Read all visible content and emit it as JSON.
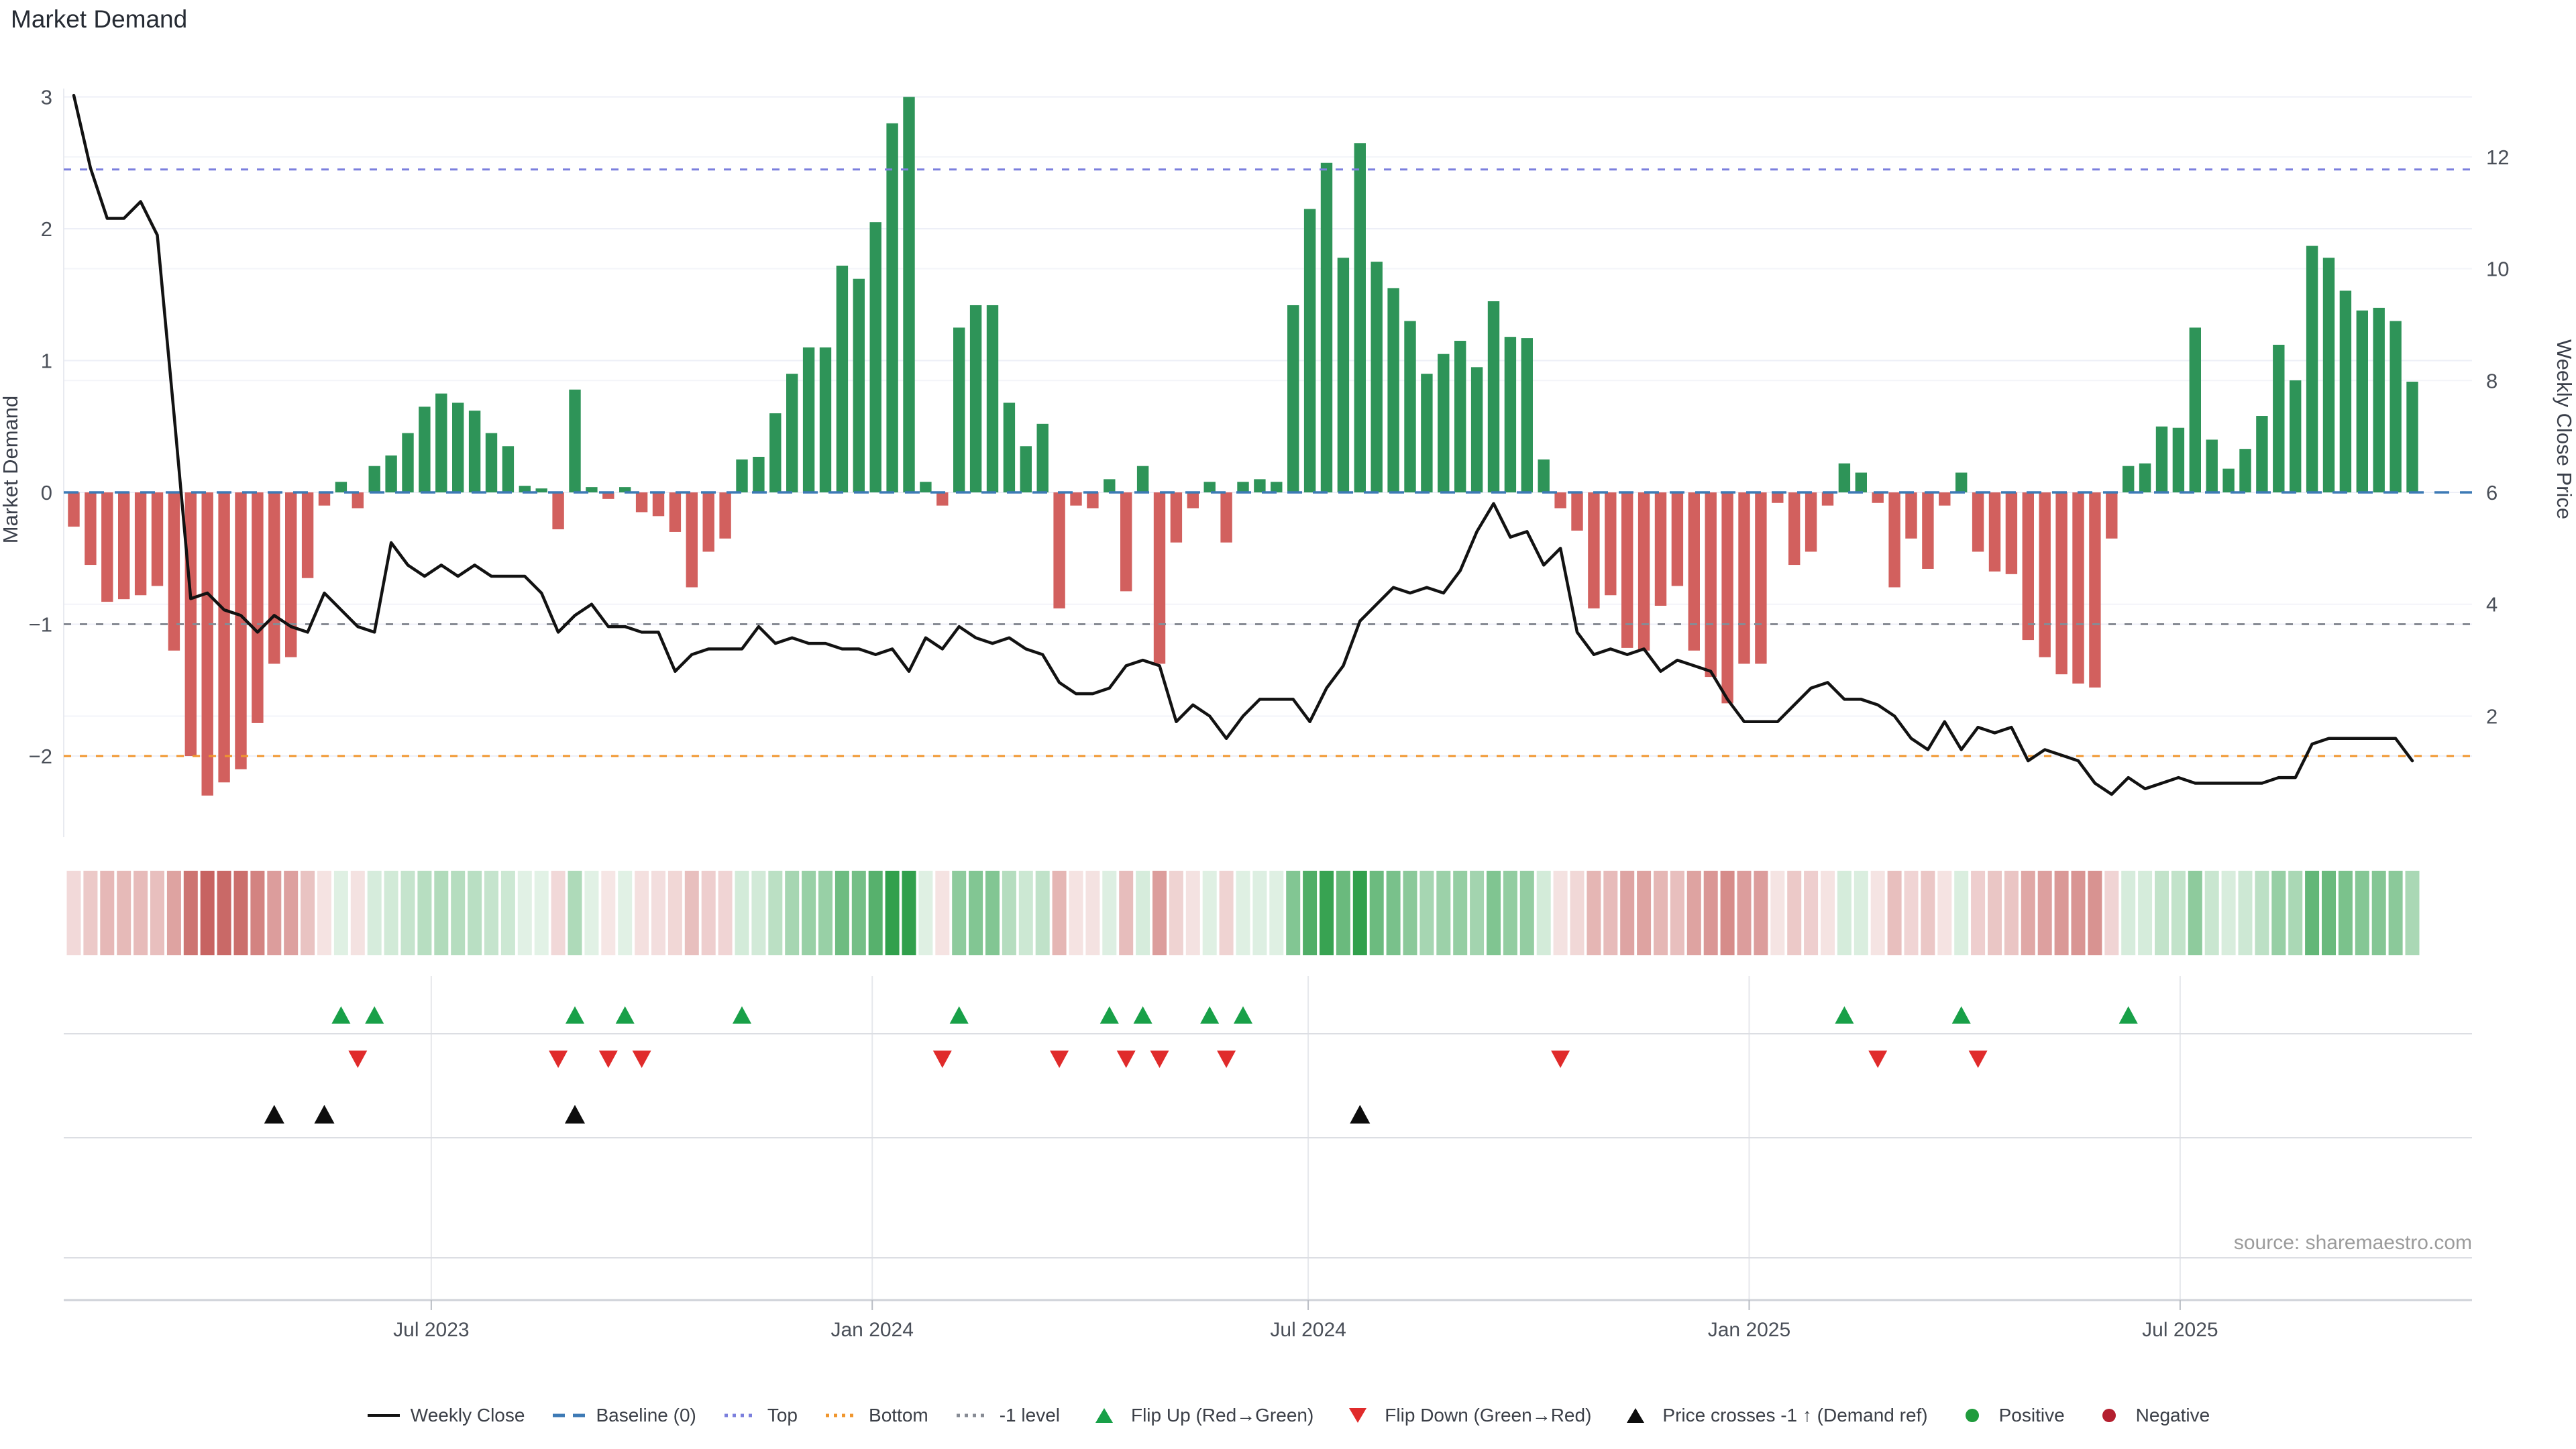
{
  "title": "Market Demand",
  "source": {
    "text": "source: sharemaestro.com"
  },
  "axes": {
    "left_label": "Market Demand",
    "right_label": "Weekly Close Price",
    "left_ticks": [
      3,
      2,
      1,
      0,
      -1,
      -2
    ],
    "right_ticks": [
      12,
      10,
      8,
      6,
      4,
      2
    ],
    "x_ticks": [
      {
        "label": "Jul 2023",
        "week": 21.4
      },
      {
        "label": "Jan 2024",
        "week": 47.8
      },
      {
        "label": "Jul 2024",
        "week": 73.9
      },
      {
        "label": "Jan 2025",
        "week": 100.3
      },
      {
        "label": "Jul 2025",
        "week": 126.1
      }
    ]
  },
  "ref_lines": {
    "baseline": {
      "label": "Baseline (0)",
      "value": 0,
      "color": "#3d7ab5"
    },
    "top": {
      "label": "Top",
      "value": 2.45,
      "color": "#7b7fdd"
    },
    "bottom": {
      "label": "Bottom",
      "value": -2.0,
      "color": "#f0962e"
    },
    "minus1": {
      "label": "-1 level",
      "value": -1.0,
      "color": "#878b94"
    }
  },
  "colors": {
    "bar_positive": "#2e9458",
    "bar_negative": "#d2605e",
    "price_line": "#121212",
    "heat_green": [
      49,
      160,
      76
    ],
    "heat_red": [
      193,
      82,
      79
    ],
    "flip_up": "#18a048",
    "flip_down": "#e02b2b",
    "price_cross": "#0d0d0d",
    "grid_left": "#edeff7",
    "grid_right": "#f3f4f9",
    "band_grid": "#e6e8ec",
    "separator": "#dcdee3",
    "axis_line": "#cfd2d8",
    "tick_text": "#4a4f58",
    "source_text": "#9b9b9b"
  },
  "chart_data": {
    "type": "bar+line",
    "x_unit": "weeks",
    "title": "Market Demand",
    "ylabel_left": "Market Demand",
    "ylabel_right": "Weekly Close Price",
    "ylim_left": [
      -2.6,
      3.05
    ],
    "ylim_right": [
      0,
      13.2
    ],
    "grid": true,
    "legend_position": "bottom-center",
    "series": [
      {
        "name": "Market Demand (weekly bars)",
        "axis": "left",
        "values": [
          -0.26,
          -0.55,
          -0.83,
          -0.81,
          -0.78,
          -0.71,
          -1.2,
          -2.0,
          -2.3,
          -2.2,
          -2.1,
          -1.75,
          -1.3,
          -1.25,
          -0.65,
          -0.1,
          0.08,
          -0.12,
          0.2,
          0.28,
          0.45,
          0.65,
          0.75,
          0.68,
          0.62,
          0.45,
          0.35,
          0.05,
          0.03,
          -0.28,
          0.78,
          0.04,
          -0.05,
          0.04,
          -0.15,
          -0.18,
          -0.3,
          -0.72,
          -0.45,
          -0.35,
          0.25,
          0.27,
          0.6,
          0.9,
          1.1,
          1.1,
          1.72,
          1.62,
          2.05,
          2.8,
          3.0,
          0.08,
          -0.1,
          1.25,
          1.42,
          1.42,
          0.68,
          0.35,
          0.52,
          -0.88,
          -0.1,
          -0.12,
          0.1,
          -0.75,
          0.2,
          -1.3,
          -0.38,
          -0.12,
          0.08,
          -0.38,
          0.08,
          0.1,
          0.08,
          1.42,
          2.15,
          2.5,
          1.78,
          2.65,
          1.75,
          1.55,
          1.3,
          0.9,
          1.05,
          1.15,
          0.95,
          1.45,
          1.18,
          1.17,
          0.25,
          -0.12,
          -0.29,
          -0.88,
          -0.78,
          -1.18,
          -1.2,
          -0.86,
          -0.71,
          -1.2,
          -1.4,
          -1.6,
          -1.3,
          -1.3,
          -0.08,
          -0.55,
          -0.45,
          -0.1,
          0.22,
          0.15,
          -0.08,
          -0.72,
          -0.35,
          -0.58,
          -0.1,
          0.15,
          -0.45,
          -0.6,
          -0.62,
          -1.12,
          -1.25,
          -1.38,
          -1.45,
          -1.48,
          -0.35,
          0.2,
          0.22,
          0.5,
          0.49,
          1.25,
          0.4,
          0.18,
          0.33,
          0.58,
          1.12,
          0.85,
          1.87,
          1.78,
          1.53,
          1.38,
          1.4,
          1.3,
          0.84
        ]
      },
      {
        "name": "Weekly Close",
        "axis": "right",
        "values": [
          13.1,
          11.8,
          10.9,
          10.9,
          11.2,
          10.6,
          7.4,
          4.1,
          4.2,
          3.9,
          3.8,
          3.5,
          3.8,
          3.6,
          3.5,
          4.2,
          3.9,
          3.6,
          3.5,
          5.1,
          4.7,
          4.5,
          4.7,
          4.5,
          4.7,
          4.5,
          4.5,
          4.5,
          4.2,
          3.5,
          3.8,
          4.0,
          3.6,
          3.6,
          3.5,
          3.5,
          2.8,
          3.1,
          3.2,
          3.2,
          3.2,
          3.6,
          3.3,
          3.4,
          3.3,
          3.3,
          3.2,
          3.2,
          3.1,
          3.2,
          2.8,
          3.4,
          3.2,
          3.6,
          3.4,
          3.3,
          3.4,
          3.2,
          3.1,
          2.6,
          2.4,
          2.4,
          2.5,
          2.9,
          3.0,
          2.9,
          1.9,
          2.2,
          2.0,
          1.6,
          2.0,
          2.3,
          2.3,
          2.3,
          1.9,
          2.5,
          2.9,
          3.7,
          4.0,
          4.3,
          4.2,
          4.3,
          4.2,
          4.6,
          5.3,
          5.8,
          5.2,
          5.3,
          4.7,
          5.0,
          3.5,
          3.1,
          3.2,
          3.1,
          3.2,
          2.8,
          3.0,
          2.9,
          2.8,
          2.3,
          1.9,
          1.9,
          1.9,
          2.2,
          2.5,
          2.6,
          2.3,
          2.3,
          2.2,
          2.0,
          1.6,
          1.4,
          1.9,
          1.4,
          1.8,
          1.7,
          1.8,
          1.2,
          1.4,
          1.3,
          1.2,
          0.8,
          0.6,
          0.9,
          0.7,
          0.8,
          0.9,
          0.8,
          0.8,
          0.8,
          0.8,
          0.8,
          0.9,
          0.9,
          1.5,
          1.6,
          1.6,
          1.6,
          1.6,
          1.6,
          1.2
        ]
      }
    ],
    "heatmap": "derived from demand sign/intensity",
    "markers": {
      "flip_up_weeks": [
        16,
        18,
        30,
        33,
        40,
        53,
        62,
        64,
        68,
        70,
        106,
        113,
        123
      ],
      "flip_down_weeks": [
        17,
        29,
        32,
        34,
        52,
        59,
        63,
        65,
        69,
        89,
        108,
        114
      ],
      "price_cross_weeks": [
        12,
        15,
        30,
        77
      ]
    }
  },
  "legend": {
    "items": [
      {
        "label": "Weekly Close",
        "swatch": "line",
        "color": "#121212"
      },
      {
        "label": "Baseline (0)",
        "swatch": "dashes",
        "color": "#3d7ab5"
      },
      {
        "label": "Top",
        "swatch": "dots",
        "color": "#7b7fdd"
      },
      {
        "label": "Bottom",
        "swatch": "dots",
        "color": "#f0962e"
      },
      {
        "label": "-1 level",
        "swatch": "dots",
        "color": "#878b94"
      },
      {
        "label": "Flip Up (Red→Green)",
        "swatch": "tri-up",
        "color": "#18a048"
      },
      {
        "label": "Flip Down (Green→Red)",
        "swatch": "tri-down",
        "color": "#e02b2b"
      },
      {
        "label": "Price crosses -1 ↑ (Demand ref)",
        "swatch": "tri-up",
        "color": "#0d0d0d"
      },
      {
        "label": "Positive",
        "swatch": "circle",
        "color": "#1f9b3c"
      },
      {
        "label": "Negative",
        "swatch": "circle",
        "color": "#b41f2f"
      }
    ]
  }
}
